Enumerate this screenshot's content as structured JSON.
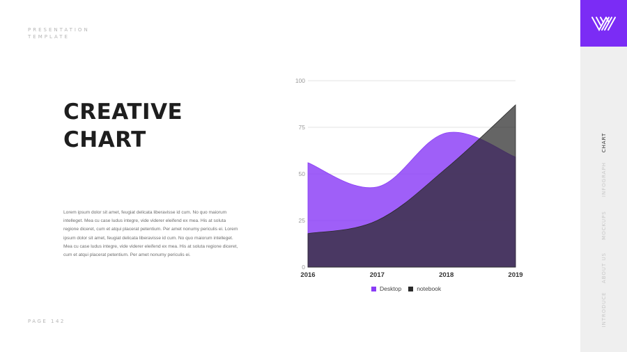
{
  "brand": {
    "line1": "PRESENTATION",
    "line2": "TEMPLATE"
  },
  "title": {
    "line1": "CREATIVE",
    "line2": "CHART"
  },
  "body_text": "Lorem ipsum dolor sit amet, feugiat delicata liberavisse id cum. No quo maiorum intelleget. Mea cu case ludus integre, vide viderer eleifend ex mea. His at soluta regione diceret, cum et atqui placerat petentium. Per amet nonumy periculis ei. Lorem ipsum dolor sit amet, feugiat delicata liberavisse id cum. No quo maiorum intelleget. Mea cu case ludus integre, vide viderer eleifend ex mea. His at soluta regione diceret, cum et atqui placerat petentium. Per amet nonumy periculis ei.",
  "page_label": "PAGE 142",
  "sidebar": {
    "logo_icon": "brand-logo-icon",
    "items": [
      {
        "label": "CHART",
        "active": true
      },
      {
        "label": "INFOGRAPH",
        "active": false
      },
      {
        "label": "MOCKUPS",
        "active": false
      },
      {
        "label": "ABOUT US",
        "active": false
      },
      {
        "label": "INTRODUCE",
        "active": false
      }
    ]
  },
  "colors": {
    "accent": "#7b2cf5",
    "desktop": "#8a3cf6",
    "notebook": "#2a2a2a"
  },
  "chart_data": {
    "type": "area",
    "x": [
      "2016",
      "2017",
      "2018",
      "2019"
    ],
    "y_ticks": [
      0,
      25,
      50,
      75,
      100
    ],
    "ylim": [
      0,
      100
    ],
    "grid": true,
    "legend_position": "bottom",
    "series": [
      {
        "name": "Desktop",
        "values": [
          56,
          43,
          72,
          59
        ],
        "color": "#8a3cf6"
      },
      {
        "name": "notebook",
        "values": [
          18,
          25,
          53,
          87
        ],
        "color": "#2a2a2a"
      }
    ]
  }
}
